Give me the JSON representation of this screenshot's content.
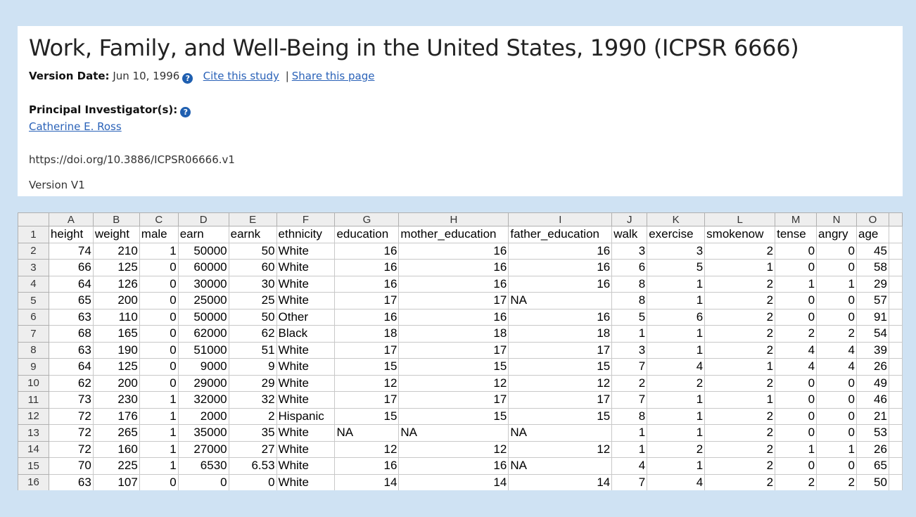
{
  "study": {
    "title": "Work, Family, and Well-Being in the United States, 1990 (ICPSR 6666)",
    "version_date_label": "Version Date:",
    "version_date": "Jun 10, 1996",
    "cite_link": "Cite this study",
    "separator": "|",
    "share_link": "Share this page",
    "pi_label": "Principal Investigator(s):",
    "pi_name": "Catherine E. Ross",
    "doi": "https://doi.org/10.3886/ICPSR06666.v1",
    "version": "Version V1",
    "help_icon": "?"
  },
  "spreadsheet": {
    "column_letters": [
      "A",
      "B",
      "C",
      "D",
      "E",
      "F",
      "G",
      "H",
      "I",
      "J",
      "K",
      "L",
      "M",
      "N",
      "O"
    ],
    "row_numbers": [
      "1",
      "2",
      "3",
      "4",
      "5",
      "6",
      "7",
      "8",
      "9",
      "10",
      "11",
      "12",
      "13",
      "14",
      "15",
      "16"
    ],
    "rows": [
      [
        "height",
        "weight",
        "male",
        "earn",
        "earnk",
        "ethnicity",
        "education",
        "mother_education",
        "father_education",
        "walk",
        "exercise",
        "smokenow",
        "tense",
        "angry",
        "age"
      ],
      [
        "74",
        "210",
        "1",
        "50000",
        "50",
        "White",
        "16",
        "16",
        "16",
        "3",
        "3",
        "2",
        "0",
        "0",
        "45"
      ],
      [
        "66",
        "125",
        "0",
        "60000",
        "60",
        "White",
        "16",
        "16",
        "16",
        "6",
        "5",
        "1",
        "0",
        "0",
        "58"
      ],
      [
        "64",
        "126",
        "0",
        "30000",
        "30",
        "White",
        "16",
        "16",
        "16",
        "8",
        "1",
        "2",
        "1",
        "1",
        "29"
      ],
      [
        "65",
        "200",
        "0",
        "25000",
        "25",
        "White",
        "17",
        "17",
        "NA",
        "8",
        "1",
        "2",
        "0",
        "0",
        "57"
      ],
      [
        "63",
        "110",
        "0",
        "50000",
        "50",
        "Other",
        "16",
        "16",
        "16",
        "5",
        "6",
        "2",
        "0",
        "0",
        "91"
      ],
      [
        "68",
        "165",
        "0",
        "62000",
        "62",
        "Black",
        "18",
        "18",
        "18",
        "1",
        "1",
        "2",
        "2",
        "2",
        "54"
      ],
      [
        "63",
        "190",
        "0",
        "51000",
        "51",
        "White",
        "17",
        "17",
        "17",
        "3",
        "1",
        "2",
        "4",
        "4",
        "39"
      ],
      [
        "64",
        "125",
        "0",
        "9000",
        "9",
        "White",
        "15",
        "15",
        "15",
        "7",
        "4",
        "1",
        "4",
        "4",
        "26"
      ],
      [
        "62",
        "200",
        "0",
        "29000",
        "29",
        "White",
        "12",
        "12",
        "12",
        "2",
        "2",
        "2",
        "0",
        "0",
        "49"
      ],
      [
        "73",
        "230",
        "1",
        "32000",
        "32",
        "White",
        "17",
        "17",
        "17",
        "7",
        "1",
        "1",
        "0",
        "0",
        "46"
      ],
      [
        "72",
        "176",
        "1",
        "2000",
        "2",
        "Hispanic",
        "15",
        "15",
        "15",
        "8",
        "1",
        "2",
        "0",
        "0",
        "21"
      ],
      [
        "72",
        "265",
        "1",
        "35000",
        "35",
        "White",
        "NA",
        "NA",
        "NA",
        "1",
        "1",
        "2",
        "0",
        "0",
        "53"
      ],
      [
        "72",
        "160",
        "1",
        "27000",
        "27",
        "White",
        "12",
        "12",
        "12",
        "1",
        "2",
        "2",
        "1",
        "1",
        "26"
      ],
      [
        "70",
        "225",
        "1",
        "6530",
        "6.53",
        "White",
        "16",
        "16",
        "NA",
        "4",
        "1",
        "2",
        "0",
        "0",
        "65"
      ],
      [
        "63",
        "107",
        "0",
        "0",
        "0",
        "White",
        "14",
        "14",
        "14",
        "7",
        "4",
        "2",
        "2",
        "2",
        "50"
      ]
    ]
  }
}
